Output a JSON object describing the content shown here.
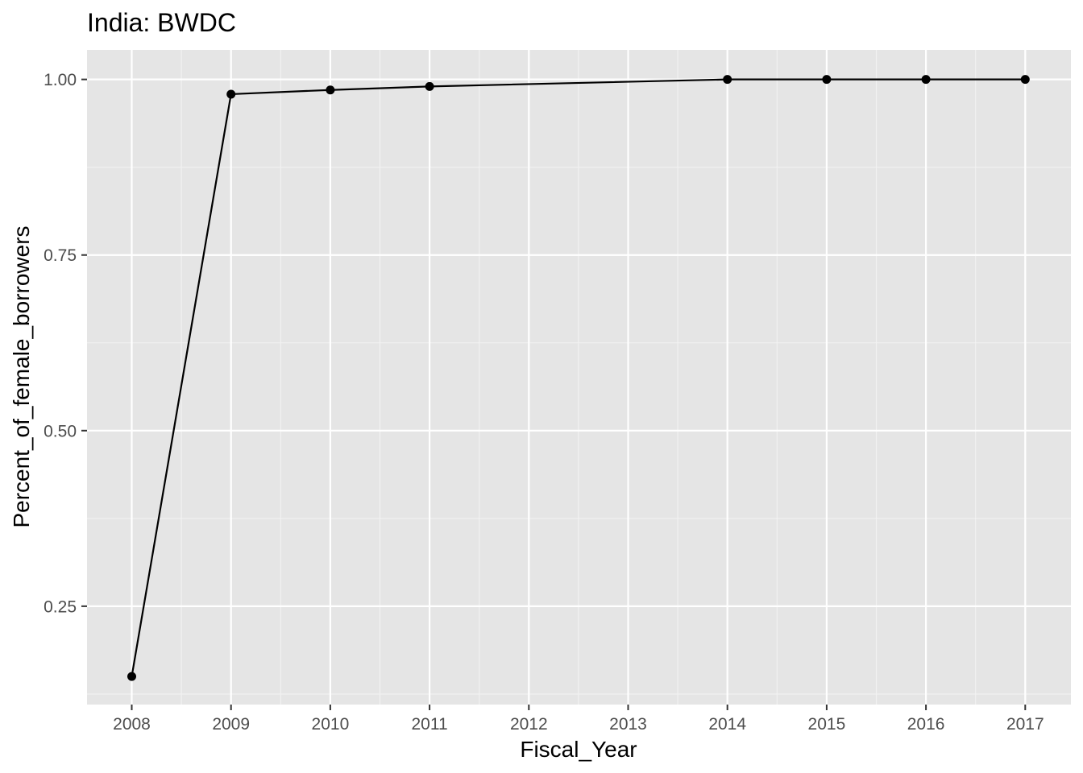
{
  "chart_data": {
    "type": "line",
    "title": "India:  BWDC",
    "xlabel": "Fiscal_Year",
    "ylabel": "Percent_of_female_borrowers",
    "x_tick_labels": [
      "2008",
      "2009",
      "2010",
      "2011",
      "2012",
      "2013",
      "2014",
      "2015",
      "2016",
      "2017"
    ],
    "y_ticks": [
      0.25,
      0.5,
      0.75,
      1.0
    ],
    "y_tick_labels": [
      "0.25",
      "0.50",
      "0.75",
      "1.00"
    ],
    "ylim": [
      0.11,
      1.042
    ],
    "grid": true,
    "series": [
      {
        "x": [
          "2008",
          "2009",
          "2010",
          "2011",
          "2014",
          "2015",
          "2016",
          "2017"
        ],
        "values": [
          0.15,
          0.979,
          0.985,
          0.99,
          1.0,
          1.0,
          1.0,
          1.0
        ]
      }
    ],
    "colors": {
      "panel_background": "#e5e5e5",
      "grid_major": "#ffffff",
      "grid_minor": "#f2f2f2",
      "line": "#000000",
      "point": "#000000",
      "tick_text": "#4d4d4d",
      "tick_mark": "#333333"
    }
  }
}
